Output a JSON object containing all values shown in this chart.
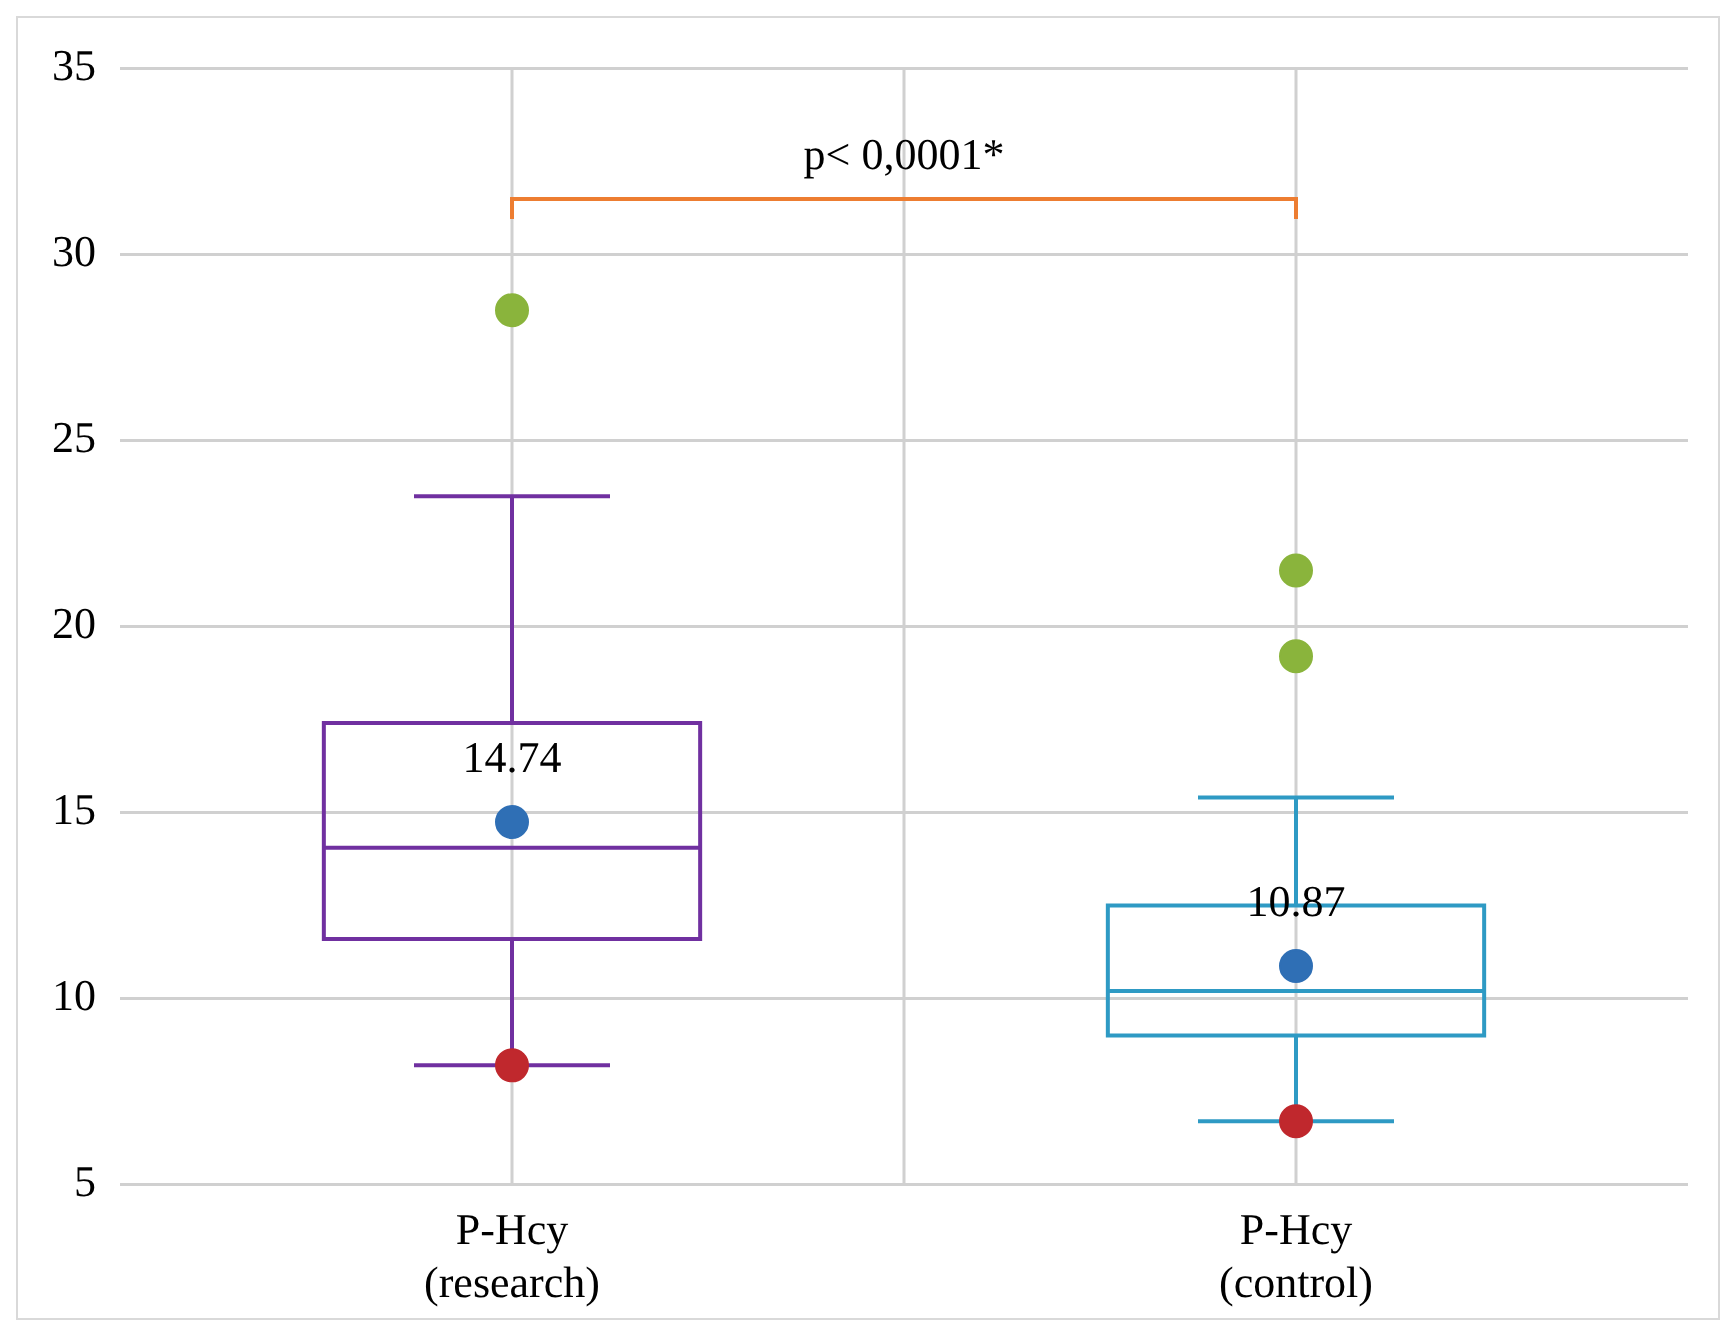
{
  "chart_data": {
    "type": "box",
    "categories": [
      "P-Hcy (research)",
      "P-Hcy (control)"
    ],
    "colors": [
      "#7030a0",
      "#2e9ac4"
    ],
    "boxes": [
      {
        "low": 8.2,
        "q1": 11.6,
        "median": 14.05,
        "q3": 17.4,
        "high": 23.5
      },
      {
        "low": 6.7,
        "q1": 9.0,
        "median": 10.2,
        "q3": 12.5,
        "high": 15.4
      }
    ],
    "series": [
      {
        "type": "scatter",
        "color": "#8ab43c",
        "x": [
          "P-Hcy (research)",
          "P-Hcy (control)",
          "P-Hcy (control)"
        ],
        "values": [
          28.5,
          21.5,
          19.2
        ]
      },
      {
        "type": "scatter",
        "color": "#2f6fb5",
        "x": [
          "P-Hcy (research)",
          "P-Hcy (control)"
        ],
        "values": [
          14.74,
          10.87
        ],
        "value_labels": [
          "14.74",
          "10.87"
        ]
      },
      {
        "type": "scatter",
        "color": "#c0282d",
        "x": [
          "P-Hcy (research)",
          "P-Hcy (control)"
        ],
        "values": [
          8.2,
          6.7
        ]
      }
    ],
    "ylim": [
      5,
      35
    ],
    "yticks": [
      5,
      10,
      15,
      20,
      25,
      30,
      35
    ],
    "grid": true,
    "legend": false,
    "marker": "circle",
    "annotations": [
      "p< 0,0001*"
    ]
  }
}
